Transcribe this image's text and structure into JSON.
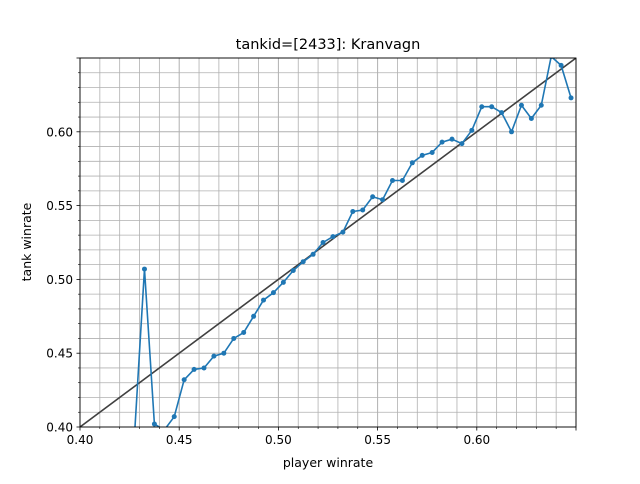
{
  "chart_data": {
    "type": "line",
    "title": "tankid=[2433]: Kranvagn",
    "xlabel": "player winrate",
    "ylabel": "tank winrate",
    "xlim": [
      0.4,
      0.65
    ],
    "ylim": [
      0.4,
      0.65
    ],
    "xticks": [
      0.4,
      0.45,
      0.5,
      0.55,
      0.6
    ],
    "xtick_labels": [
      "0.40",
      "0.45",
      "0.50",
      "0.55",
      "0.60"
    ],
    "yticks": [
      0.4,
      0.45,
      0.5,
      0.55,
      0.6
    ],
    "ytick_labels": [
      "0.40",
      "0.45",
      "0.50",
      "0.55",
      "0.60"
    ],
    "minor_step": 0.01,
    "grid": true,
    "colors": {
      "series": "#1f77b4",
      "reference": "#404040",
      "grid": "#b0b0b0"
    },
    "reference_line": {
      "x": [
        0.4,
        0.65
      ],
      "y": [
        0.4,
        0.65
      ]
    },
    "series": [
      {
        "x": [
          0.4275,
          0.4325,
          0.4375,
          0.4425,
          0.4475,
          0.4525,
          0.4575,
          0.4625,
          0.4675,
          0.4725,
          0.4775,
          0.4825,
          0.4875,
          0.4925,
          0.4975,
          0.5025,
          0.5075,
          0.5125,
          0.5175,
          0.5225,
          0.5275,
          0.5325,
          0.5375,
          0.5425,
          0.5475,
          0.5525,
          0.5575,
          0.5625,
          0.5675,
          0.5725,
          0.5775,
          0.5825,
          0.5875,
          0.5925,
          0.5975,
          0.6025,
          0.6075,
          0.6125,
          0.6175,
          0.6225,
          0.6275,
          0.6325,
          0.6375,
          0.6425,
          0.6475
        ],
        "y": [
          0.395,
          0.507,
          0.402,
          0.398,
          0.407,
          0.432,
          0.439,
          0.44,
          0.448,
          0.45,
          0.46,
          0.464,
          0.475,
          0.486,
          0.491,
          0.498,
          0.506,
          0.512,
          0.517,
          0.525,
          0.529,
          0.532,
          0.546,
          0.547,
          0.556,
          0.554,
          0.567,
          0.567,
          0.579,
          0.584,
          0.586,
          0.593,
          0.595,
          0.592,
          0.601,
          0.617,
          0.617,
          0.613,
          0.6,
          0.618,
          0.609,
          0.618,
          0.651,
          0.645,
          0.623
        ]
      }
    ]
  }
}
